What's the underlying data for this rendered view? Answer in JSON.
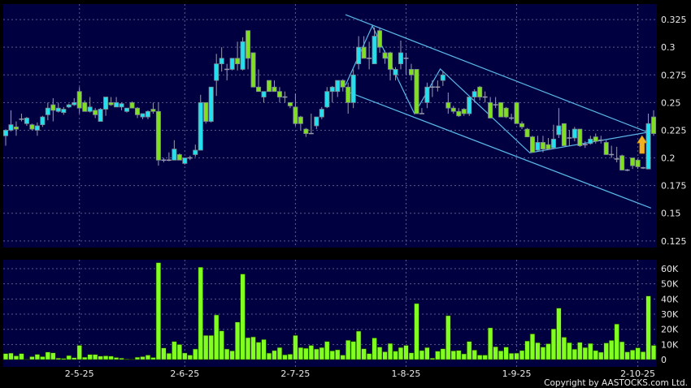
{
  "copyright": "Copyright by AASTOCKS.com Ltd.",
  "colors": {
    "background": "#000000",
    "panel": "#000040",
    "grid": "#5a5a8a",
    "up": "#22e0f0",
    "down": "#80e020",
    "doji": "#9a9ab0",
    "wick": "#9a9ab0",
    "volume": "#80ff20",
    "trendline": "#5ab8e8",
    "arrow": "#f0b020"
  },
  "chart_data": [
    {
      "type": "candlestick",
      "ylim": [
        0.119,
        0.339
      ],
      "grid": true,
      "y_ticks": [
        "0.325",
        "0.3",
        "0.275",
        "0.25",
        "0.225",
        "0.2",
        "0.175",
        "0.15",
        "0.125"
      ],
      "x_ticks": [
        {
          "label": "2-5-25",
          "index": 15
        },
        {
          "label": "2-6-25",
          "index": 35
        },
        {
          "label": "2-7-25",
          "index": 56
        },
        {
          "label": "1-8-25",
          "index": 77
        },
        {
          "label": "1-9-25",
          "index": 98
        },
        {
          "label": "2-10-25",
          "index": 121
        }
      ],
      "ohlc_fields": [
        "open",
        "high",
        "low",
        "close"
      ],
      "candles": [
        [
          0.22,
          0.226,
          0.211,
          0.225
        ],
        [
          0.225,
          0.243,
          0.224,
          0.23
        ],
        [
          0.228,
          0.233,
          0.22,
          0.226
        ],
        [
          0.235,
          0.24,
          0.233,
          0.235
        ],
        [
          0.231,
          0.237,
          0.229,
          0.236
        ],
        [
          0.23,
          0.231,
          0.225,
          0.226
        ],
        [
          0.225,
          0.232,
          0.22,
          0.229
        ],
        [
          0.23,
          0.238,
          0.228,
          0.237
        ],
        [
          0.239,
          0.25,
          0.234,
          0.245
        ],
        [
          0.248,
          0.254,
          0.233,
          0.243
        ],
        [
          0.242,
          0.25,
          0.241,
          0.245
        ],
        [
          0.241,
          0.246,
          0.239,
          0.244
        ],
        [
          0.246,
          0.249,
          0.245,
          0.248
        ],
        [
          0.248,
          0.254,
          0.247,
          0.25
        ],
        [
          0.26,
          0.264,
          0.24,
          0.245
        ],
        [
          0.25,
          0.252,
          0.242,
          0.242
        ],
        [
          0.242,
          0.255,
          0.241,
          0.246
        ],
        [
          0.243,
          0.245,
          0.236,
          0.239
        ],
        [
          0.233,
          0.245,
          0.233,
          0.244
        ],
        [
          0.244,
          0.255,
          0.238,
          0.255
        ],
        [
          0.25,
          0.255,
          0.247,
          0.248
        ],
        [
          0.246,
          0.255,
          0.246,
          0.25
        ],
        [
          0.246,
          0.25,
          0.243,
          0.249
        ],
        [
          0.242,
          0.245,
          0.241,
          0.245
        ],
        [
          0.25,
          0.251,
          0.245,
          0.245
        ],
        [
          0.245,
          0.246,
          0.236,
          0.239
        ],
        [
          0.237,
          0.24,
          0.235,
          0.24
        ],
        [
          0.237,
          0.243,
          0.235,
          0.242
        ],
        [
          0.244,
          0.25,
          0.24,
          0.242
        ],
        [
          0.242,
          0.25,
          0.193,
          0.198
        ],
        [
          0.198,
          0.2,
          0.196,
          0.198
        ],
        [
          0.198,
          0.205,
          0.197,
          0.198
        ],
        [
          0.198,
          0.216,
          0.198,
          0.208
        ],
        [
          0.203,
          0.204,
          0.198,
          0.198
        ],
        [
          0.195,
          0.2,
          0.194,
          0.2
        ],
        [
          0.2,
          0.202,
          0.198,
          0.2
        ],
        [
          0.203,
          0.212,
          0.201,
          0.207
        ],
        [
          0.207,
          0.257,
          0.207,
          0.25
        ],
        [
          0.25,
          0.25,
          0.231,
          0.233
        ],
        [
          0.233,
          0.264,
          0.232,
          0.264
        ],
        [
          0.27,
          0.294,
          0.256,
          0.285
        ],
        [
          0.285,
          0.3,
          0.278,
          0.29
        ],
        [
          0.28,
          0.285,
          0.27,
          0.28
        ],
        [
          0.28,
          0.29,
          0.279,
          0.29
        ],
        [
          0.29,
          0.305,
          0.279,
          0.285
        ],
        [
          0.28,
          0.309,
          0.279,
          0.305
        ],
        [
          0.315,
          0.315,
          0.28,
          0.29
        ],
        [
          0.295,
          0.295,
          0.264,
          0.264
        ],
        [
          0.264,
          0.28,
          0.26,
          0.26
        ],
        [
          0.255,
          0.26,
          0.25,
          0.26
        ],
        [
          0.27,
          0.27,
          0.26,
          0.26
        ],
        [
          0.264,
          0.27,
          0.26,
          0.26
        ],
        [
          0.26,
          0.264,
          0.25,
          0.255
        ],
        [
          0.255,
          0.26,
          0.25,
          0.255
        ],
        [
          0.25,
          0.25,
          0.245,
          0.247
        ],
        [
          0.246,
          0.258,
          0.229,
          0.231
        ],
        [
          0.237,
          0.238,
          0.225,
          0.231
        ],
        [
          0.226,
          0.227,
          0.219,
          0.222
        ],
        [
          0.222,
          0.24,
          0.222,
          0.222
        ],
        [
          0.229,
          0.237,
          0.226,
          0.237
        ],
        [
          0.237,
          0.246,
          0.235,
          0.244
        ],
        [
          0.246,
          0.264,
          0.245,
          0.26
        ],
        [
          0.26,
          0.265,
          0.25,
          0.264
        ],
        [
          0.26,
          0.27,
          0.255,
          0.27
        ],
        [
          0.27,
          0.271,
          0.26,
          0.264
        ],
        [
          0.264,
          0.268,
          0.24,
          0.25
        ],
        [
          0.25,
          0.28,
          0.245,
          0.275
        ],
        [
          0.285,
          0.31,
          0.28,
          0.3
        ],
        [
          0.3,
          0.31,
          0.29,
          0.29
        ],
        [
          0.29,
          0.305,
          0.28,
          0.29
        ],
        [
          0.285,
          0.318,
          0.285,
          0.31
        ],
        [
          0.315,
          0.318,
          0.295,
          0.3
        ],
        [
          0.295,
          0.297,
          0.285,
          0.29
        ],
        [
          0.295,
          0.296,
          0.27,
          0.28
        ],
        [
          0.275,
          0.282,
          0.27,
          0.28
        ],
        [
          0.285,
          0.306,
          0.28,
          0.295
        ],
        [
          0.29,
          0.295,
          0.275,
          0.29
        ],
        [
          0.28,
          0.285,
          0.27,
          0.275
        ],
        [
          0.28,
          0.28,
          0.24,
          0.24
        ],
        [
          0.24,
          0.245,
          0.24,
          0.24
        ],
        [
          0.25,
          0.268,
          0.245,
          0.264
        ],
        [
          0.264,
          0.27,
          0.255,
          0.264
        ],
        [
          0.264,
          0.27,
          0.26,
          0.264
        ],
        [
          0.27,
          0.278,
          0.265,
          0.275
        ],
        [
          0.25,
          0.259,
          0.24,
          0.245
        ],
        [
          0.245,
          0.247,
          0.24,
          0.242
        ],
        [
          0.242,
          0.245,
          0.237,
          0.238
        ],
        [
          0.244,
          0.245,
          0.238,
          0.24
        ],
        [
          0.24,
          0.255,
          0.238,
          0.255
        ],
        [
          0.255,
          0.262,
          0.25,
          0.26
        ],
        [
          0.264,
          0.265,
          0.252,
          0.255
        ],
        [
          0.255,
          0.26,
          0.25,
          0.255
        ],
        [
          0.25,
          0.255,
          0.236,
          0.236
        ],
        [
          0.248,
          0.255,
          0.245,
          0.248
        ],
        [
          0.25,
          0.25,
          0.237,
          0.237
        ],
        [
          0.245,
          0.246,
          0.236,
          0.237
        ],
        [
          0.236,
          0.24,
          0.234,
          0.236
        ],
        [
          0.25,
          0.25,
          0.231,
          0.231
        ],
        [
          0.231,
          0.233,
          0.226,
          0.228
        ],
        [
          0.226,
          0.227,
          0.219,
          0.219
        ],
        [
          0.219,
          0.22,
          0.205,
          0.205
        ],
        [
          0.207,
          0.22,
          0.206,
          0.214
        ],
        [
          0.214,
          0.22,
          0.205,
          0.208
        ],
        [
          0.212,
          0.218,
          0.207,
          0.208
        ],
        [
          0.209,
          0.23,
          0.208,
          0.217
        ],
        [
          0.221,
          0.245,
          0.218,
          0.229
        ],
        [
          0.231,
          0.231,
          0.211,
          0.211
        ],
        [
          0.218,
          0.225,
          0.211,
          0.218
        ],
        [
          0.218,
          0.228,
          0.215,
          0.226
        ],
        [
          0.226,
          0.226,
          0.21,
          0.211
        ],
        [
          0.212,
          0.215,
          0.209,
          0.212
        ],
        [
          0.213,
          0.22,
          0.212,
          0.217
        ],
        [
          0.219,
          0.222,
          0.213,
          0.215
        ],
        [
          0.216,
          0.22,
          0.213,
          0.216
        ],
        [
          0.214,
          0.216,
          0.203,
          0.203
        ],
        [
          0.203,
          0.211,
          0.2,
          0.203
        ],
        [
          0.199,
          0.21,
          0.196,
          0.199
        ],
        [
          0.202,
          0.203,
          0.189,
          0.189
        ],
        [
          0.189,
          0.19,
          0.188,
          0.189
        ],
        [
          0.2,
          0.2,
          0.19,
          0.193
        ],
        [
          0.198,
          0.199,
          0.19,
          0.192
        ],
        [
          0.191,
          0.192,
          0.19,
          0.191
        ],
        [
          0.19,
          0.24,
          0.19,
          0.231
        ],
        [
          0.237,
          0.243,
          0.22,
          0.222
        ]
      ],
      "trendlines": [
        {
          "label": "",
          "points": [
            [
              65.5,
              0.3294
            ],
            [
              123,
              0.223
            ]
          ]
        },
        {
          "label": "",
          "points": [
            [
              65.5,
              0.2605
            ],
            [
              123.5,
              0.1547
            ]
          ]
        },
        {
          "label": "",
          "points": [
            [
              65.5,
              0.2657
            ],
            [
              70.6,
              0.3193
            ],
            [
              78.6,
              0.2399
            ],
            [
              83.5,
              0.2804
            ],
            [
              100.5,
              0.2046
            ],
            [
              123.5,
              0.2237
            ]
          ]
        }
      ],
      "annotations": [
        {
          "type": "up-arrow",
          "index": 121.8,
          "price": 0.204
        }
      ]
    },
    {
      "type": "bar",
      "unit": "K",
      "ylim": [
        -4.8,
        65.9
      ],
      "grid": true,
      "y_ticks": [
        {
          "label": "60K",
          "value": 60
        },
        {
          "label": "50K",
          "value": 50
        },
        {
          "label": "40K",
          "value": 40
        },
        {
          "label": "30K",
          "value": 30
        },
        {
          "label": "20K",
          "value": 20
        },
        {
          "label": "10K",
          "value": 10
        },
        {
          "label": "0",
          "value": 0
        }
      ],
      "values": [
        4,
        4.3,
        2.5,
        4,
        0.3,
        2,
        3.5,
        2,
        5,
        4.5,
        1,
        0.8,
        2.7,
        1.3,
        9.4,
        1.6,
        3.4,
        3.4,
        2.3,
        2.5,
        2.3,
        1.4,
        1,
        0.4,
        0.3,
        1.6,
        2,
        3,
        1.4,
        64,
        7.7,
        4.2,
        12,
        10,
        4.4,
        3,
        7,
        61,
        16,
        16,
        29.5,
        19,
        7,
        5.8,
        24.8,
        56.5,
        14.5,
        15,
        11.5,
        13.3,
        4.3,
        6,
        8,
        3.2,
        3.6,
        16,
        8,
        7.5,
        9.4,
        7,
        8,
        12,
        5.8,
        6.5,
        3,
        12.8,
        12,
        18.8,
        7.2,
        4,
        14.3,
        8.3,
        5.2,
        10.7,
        5.6,
        8,
        9.4,
        4.5,
        37,
        6,
        8,
        1,
        5.6,
        7.2,
        29,
        5.8,
        6.1,
        3.8,
        12,
        6.3,
        3,
        3,
        21,
        8.5,
        5.8,
        8.3,
        4.2,
        4.3,
        6,
        12.3,
        17,
        11.2,
        8.3,
        10.5,
        20.3,
        34,
        14.8,
        11.2,
        6.9,
        11.4,
        8,
        10.7,
        6,
        4.9,
        11,
        12.7,
        23.5,
        11.8,
        5.1,
        6.3,
        7.8,
        5.2,
        42,
        9.4
      ]
    }
  ]
}
